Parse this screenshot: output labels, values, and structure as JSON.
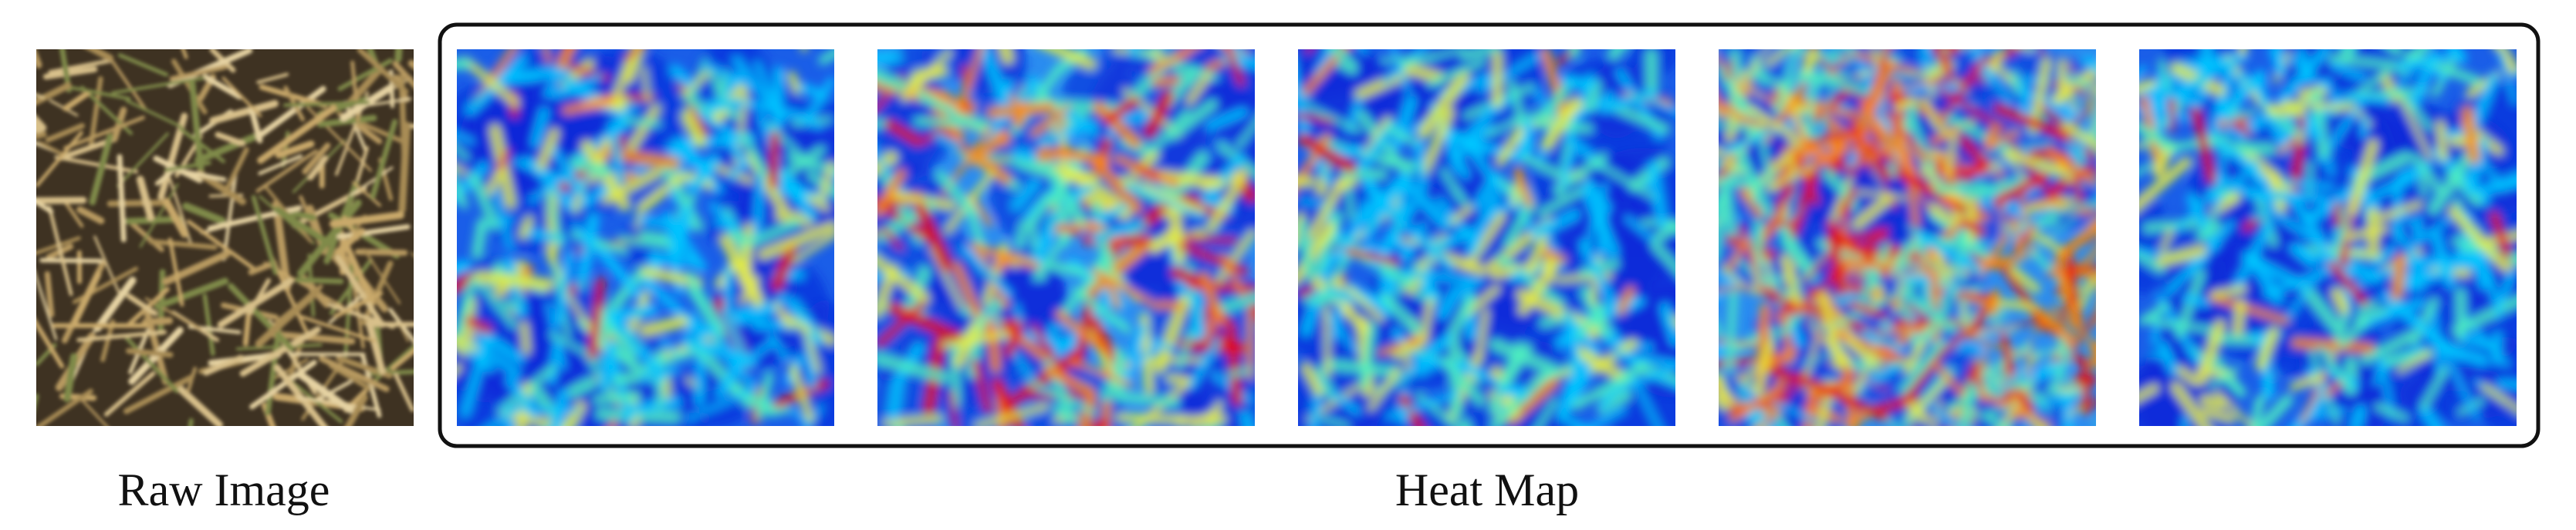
{
  "raw_image": {
    "label": "Raw Image"
  },
  "heat_map": {
    "label": "Heat Map"
  }
}
